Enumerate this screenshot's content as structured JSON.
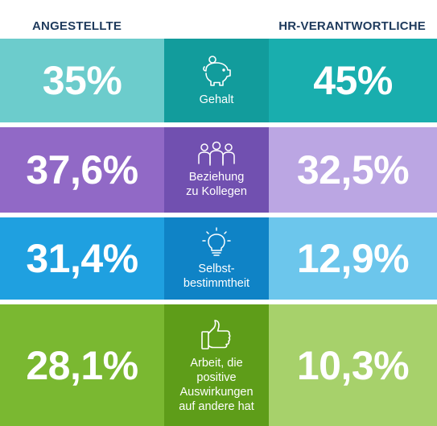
{
  "chart_data": {
    "type": "table",
    "columns": [
      "ANGESTELLTE",
      "HR-VERANTWORTLICHE"
    ],
    "rows": [
      {
        "category": "Gehalt",
        "angestellte": "35%",
        "hr": "45%",
        "icon": "piggy-bank-icon"
      },
      {
        "category": "Beziehung zu Kollegen",
        "angestellte": "37,6%",
        "hr": "32,5%",
        "icon": "people-group-icon"
      },
      {
        "category": "Selbstbestimmtheit",
        "angestellte": "31,4%",
        "hr": "12,9%",
        "icon": "lightbulb-icon"
      },
      {
        "category": "Arbeit, die positive Auswirkungen auf andere hat",
        "angestellte": "28,1%",
        "hr": "10,3%",
        "icon": "thumbs-up-icon"
      }
    ]
  },
  "header": {
    "left": "ANGESTELLTE",
    "right": "HR-VERANTWORTLICHE"
  },
  "rows": [
    {
      "left_value": "35%",
      "right_value": "45%",
      "label_lines": [
        "Gehalt"
      ],
      "icon": "piggy-bank-icon",
      "colors": {
        "left": "#6ccccc",
        "mid": "#129c9c",
        "right": "#19aeae"
      }
    },
    {
      "left_value": "37,6%",
      "right_value": "32,5%",
      "label_lines": [
        "Beziehung",
        "zu Kollegen"
      ],
      "icon": "people-group-icon",
      "colors": {
        "left": "#9169c6",
        "mid": "#7150b0",
        "right": "#bba6e3"
      }
    },
    {
      "left_value": "31,4%",
      "right_value": "12,9%",
      "label_lines": [
        "Selbst-",
        "bestimmtheit"
      ],
      "icon": "lightbulb-icon",
      "colors": {
        "left": "#1fa0e0",
        "mid": "#0f83c6",
        "right": "#6cc6ec"
      }
    },
    {
      "left_value": "28,1%",
      "right_value": "10,3%",
      "label_lines": [
        "Arbeit, die",
        "positive",
        "Auswirkungen",
        "auf andere hat"
      ],
      "icon": "thumbs-up-icon",
      "colors": {
        "left": "#7ab831",
        "mid": "#5e9d19",
        "right": "#a7d16b"
      }
    }
  ]
}
